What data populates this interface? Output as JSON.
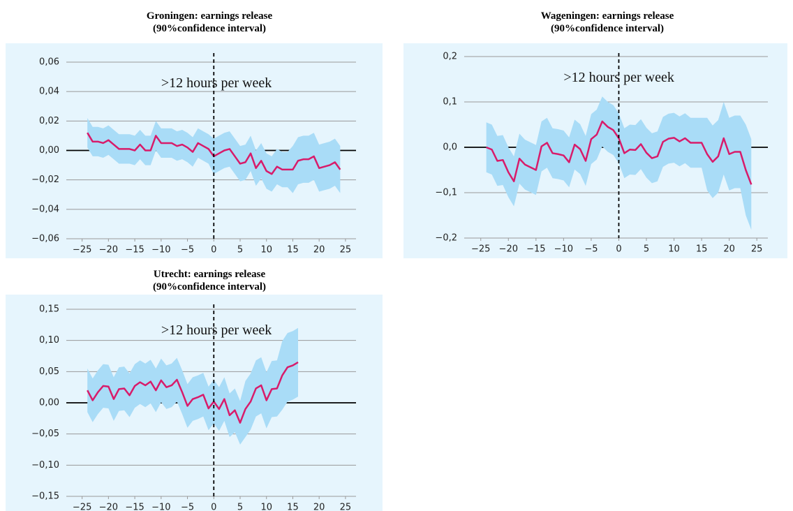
{
  "chart_data": [
    {
      "type": "line",
      "title": "Groningen: earnings release",
      "subtitle": "(90%confidence interval)",
      "annotation": ">12 hours per week",
      "color": "#d81b6a",
      "band_color": "#a9dcf7",
      "background": "#e6f5fd",
      "vline": 0,
      "xlim": [
        -28,
        27
      ],
      "ylim": [
        -0.06,
        0.06
      ],
      "xticks": [
        {
          "value": -25,
          "label": "−25"
        },
        {
          "value": -20,
          "label": "−20"
        },
        {
          "value": -15,
          "label": "−15"
        },
        {
          "value": -10,
          "label": "−10"
        },
        {
          "value": -5,
          "label": "−5"
        },
        0,
        5,
        10,
        15,
        20,
        25
      ],
      "yticks": [
        {
          "value": -0.06,
          "label": "−0,06"
        },
        {
          "value": -0.04,
          "label": "−0,04"
        },
        {
          "value": -0.02,
          "label": "−0,02"
        },
        {
          "value": 0,
          "label": "0,00"
        },
        {
          "value": 0.02,
          "label": "0,02"
        },
        {
          "value": 0.04,
          "label": "0,04"
        },
        {
          "value": 0.06,
          "label": "0,06"
        }
      ],
      "x": [
        -24,
        -23,
        -22,
        -21,
        -20,
        -19,
        -18,
        -17,
        -16,
        -15,
        -14,
        -13,
        -12,
        -11,
        -10,
        -9,
        -8,
        -7,
        -6,
        -5,
        -4,
        -3,
        -2,
        -1,
        0,
        1,
        2,
        3,
        4,
        5,
        6,
        7,
        8,
        9,
        10,
        11,
        12,
        13,
        14,
        15,
        16,
        17,
        18,
        19,
        20,
        21,
        22,
        23,
        24
      ],
      "values": [
        0.012,
        0.006,
        0.006,
        0.005,
        0.007,
        0.004,
        0.001,
        0.001,
        0.001,
        0.0,
        0.004,
        0.0,
        0.0,
        0.01,
        0.005,
        0.005,
        0.005,
        0.003,
        0.004,
        0.002,
        -0.001,
        0.005,
        0.003,
        0.001,
        -0.004,
        -0.002,
        0.0,
        0.001,
        -0.004,
        -0.009,
        -0.008,
        -0.002,
        -0.012,
        -0.007,
        -0.014,
        -0.016,
        -0.011,
        -0.013,
        -0.013,
        -0.013,
        -0.007,
        -0.006,
        -0.006,
        -0.004,
        -0.012,
        -0.011,
        -0.01,
        -0.008,
        -0.013
      ],
      "lower": [
        0.002,
        -0.004,
        -0.004,
        -0.005,
        -0.003,
        -0.006,
        -0.009,
        -0.009,
        -0.009,
        -0.01,
        -0.006,
        -0.01,
        -0.01,
        0.0,
        -0.005,
        -0.005,
        -0.005,
        -0.007,
        -0.006,
        -0.008,
        -0.011,
        -0.005,
        -0.007,
        -0.009,
        -0.016,
        -0.014,
        -0.012,
        -0.011,
        -0.016,
        -0.021,
        -0.02,
        -0.014,
        -0.024,
        -0.019,
        -0.026,
        -0.028,
        -0.023,
        -0.025,
        -0.025,
        -0.029,
        -0.023,
        -0.022,
        -0.022,
        -0.02,
        -0.028,
        -0.027,
        -0.026,
        -0.024,
        -0.029
      ],
      "upper": [
        0.022,
        0.016,
        0.016,
        0.015,
        0.017,
        0.014,
        0.011,
        0.011,
        0.011,
        0.01,
        0.014,
        0.01,
        0.01,
        0.02,
        0.015,
        0.015,
        0.015,
        0.013,
        0.014,
        0.012,
        0.009,
        0.015,
        0.013,
        0.011,
        0.008,
        0.01,
        0.012,
        0.013,
        0.008,
        0.003,
        0.004,
        0.01,
        0.0,
        0.005,
        -0.002,
        -0.004,
        0.001,
        -0.001,
        -0.001,
        0.003,
        0.009,
        0.01,
        0.01,
        0.012,
        0.004,
        0.005,
        0.006,
        0.008,
        0.003
      ]
    },
    {
      "type": "line",
      "title": "Wageningen: earnings release",
      "subtitle": "(90%confidence interval)",
      "annotation": ">12 hours per week",
      "color": "#d81b6a",
      "band_color": "#a9dcf7",
      "background": "#e6f5fd",
      "vline": 0,
      "xlim": [
        -28,
        27
      ],
      "ylim": [
        -0.2,
        0.2
      ],
      "xticks": [
        {
          "value": -25,
          "label": "−25"
        },
        {
          "value": -20,
          "label": "−20"
        },
        {
          "value": -15,
          "label": "−15"
        },
        {
          "value": -10,
          "label": "−10"
        },
        {
          "value": -5,
          "label": "−5"
        },
        0,
        5,
        10,
        15,
        20,
        25
      ],
      "yticks": [
        {
          "value": -0.2,
          "label": "−0,2"
        },
        {
          "value": -0.1,
          "label": "−0,1"
        },
        {
          "value": 0,
          "label": "0,0"
        },
        {
          "value": 0.1,
          "label": "0,1"
        },
        {
          "value": 0.2,
          "label": "0,2"
        }
      ],
      "x": [
        -24,
        -23,
        -22,
        -21,
        -20,
        -19,
        -18,
        -17,
        -16,
        -15,
        -14,
        -13,
        -12,
        -11,
        -10,
        -9,
        -8,
        -7,
        -6,
        -5,
        -4,
        -3,
        -2,
        -1,
        0,
        1,
        2,
        3,
        4,
        5,
        6,
        7,
        8,
        9,
        10,
        11,
        12,
        13,
        14,
        15,
        16,
        17,
        18,
        19,
        20,
        21,
        22,
        23,
        24
      ],
      "values": [
        0.0,
        -0.005,
        -0.03,
        -0.028,
        -0.055,
        -0.075,
        -0.025,
        -0.038,
        -0.044,
        -0.05,
        0.002,
        0.01,
        -0.013,
        -0.015,
        -0.018,
        -0.033,
        0.006,
        -0.004,
        -0.03,
        0.018,
        0.028,
        0.057,
        0.045,
        0.038,
        0.02,
        -0.013,
        -0.005,
        -0.006,
        0.007,
        -0.012,
        -0.024,
        -0.02,
        0.012,
        0.019,
        0.021,
        0.013,
        0.02,
        0.01,
        0.01,
        0.01,
        -0.015,
        -0.032,
        -0.02,
        0.02,
        -0.015,
        -0.01,
        -0.01,
        -0.05,
        -0.082
      ],
      "lower": [
        -0.055,
        -0.06,
        -0.085,
        -0.083,
        -0.11,
        -0.13,
        -0.08,
        -0.093,
        -0.099,
        -0.105,
        -0.053,
        -0.045,
        -0.068,
        -0.07,
        -0.073,
        -0.088,
        -0.049,
        -0.059,
        -0.085,
        -0.037,
        -0.027,
        0.002,
        -0.01,
        -0.017,
        -0.035,
        -0.068,
        -0.06,
        -0.061,
        -0.048,
        -0.067,
        -0.079,
        -0.075,
        -0.043,
        -0.036,
        -0.034,
        -0.042,
        -0.035,
        -0.045,
        -0.045,
        -0.045,
        -0.095,
        -0.112,
        -0.1,
        -0.06,
        -0.095,
        -0.09,
        -0.09,
        -0.15,
        -0.182
      ],
      "upper": [
        0.055,
        0.05,
        0.025,
        0.027,
        0.0,
        -0.02,
        0.03,
        0.017,
        0.011,
        0.005,
        0.057,
        0.065,
        0.042,
        0.04,
        0.037,
        0.022,
        0.061,
        0.051,
        0.025,
        0.073,
        0.083,
        0.112,
        0.1,
        0.093,
        0.075,
        0.042,
        0.05,
        0.049,
        0.062,
        0.043,
        0.031,
        0.035,
        0.067,
        0.074,
        0.076,
        0.068,
        0.075,
        0.065,
        0.065,
        0.065,
        0.065,
        0.048,
        0.06,
        0.1,
        0.065,
        0.07,
        0.07,
        0.05,
        0.018
      ]
    },
    {
      "type": "line",
      "title": "Utrecht: earnings release",
      "subtitle": "(90%confidence interval)",
      "annotation": ">12 hours per week",
      "color": "#d81b6a",
      "band_color": "#a9dcf7",
      "background": "#e6f5fd",
      "vline": 0,
      "xlim": [
        -28,
        27
      ],
      "ylim": [
        -0.15,
        0.15
      ],
      "xticks": [
        {
          "value": -25,
          "label": "−25"
        },
        {
          "value": -20,
          "label": "−20"
        },
        {
          "value": -15,
          "label": "−15"
        },
        {
          "value": -10,
          "label": "−10"
        },
        {
          "value": -5,
          "label": "−5"
        },
        0,
        5,
        10,
        15,
        20,
        25
      ],
      "yticks": [
        {
          "value": -0.15,
          "label": "−0,15"
        },
        {
          "value": -0.1,
          "label": "−0,10"
        },
        {
          "value": -0.05,
          "label": "−0,05"
        },
        {
          "value": 0,
          "label": "0,00"
        },
        {
          "value": 0.05,
          "label": "0,05"
        },
        {
          "value": 0.1,
          "label": "0,10"
        },
        {
          "value": 0.15,
          "label": "0,15"
        }
      ],
      "x": [
        -24,
        -23,
        -22,
        -21,
        -20,
        -19,
        -18,
        -17,
        -16,
        -15,
        -14,
        -13,
        -12,
        -11,
        -10,
        -9,
        -8,
        -7,
        -6,
        -5,
        -4,
        -3,
        -2,
        -1,
        0,
        1,
        2,
        3,
        4,
        5,
        6,
        7,
        8,
        9,
        10,
        11,
        12,
        13,
        14,
        15,
        16
      ],
      "values": [
        0.02,
        0.004,
        0.017,
        0.027,
        0.026,
        0.006,
        0.022,
        0.023,
        0.012,
        0.027,
        0.033,
        0.028,
        0.034,
        0.02,
        0.036,
        0.025,
        0.028,
        0.037,
        0.017,
        -0.005,
        0.006,
        0.009,
        0.013,
        -0.009,
        0.002,
        -0.01,
        0.006,
        -0.02,
        -0.012,
        -0.032,
        -0.01,
        0.002,
        0.023,
        0.028,
        0.004,
        0.022,
        0.023,
        0.044,
        0.057,
        0.06,
        0.065
      ],
      "lower": [
        -0.015,
        -0.031,
        -0.018,
        -0.008,
        -0.009,
        -0.029,
        -0.013,
        -0.012,
        -0.023,
        -0.008,
        -0.002,
        -0.007,
        -0.001,
        -0.015,
        0.001,
        -0.01,
        -0.007,
        0.002,
        -0.018,
        -0.04,
        -0.029,
        -0.026,
        -0.022,
        -0.044,
        -0.033,
        -0.045,
        -0.029,
        -0.055,
        -0.047,
        -0.067,
        -0.055,
        -0.043,
        -0.022,
        -0.017,
        -0.041,
        -0.023,
        -0.022,
        -0.011,
        0.002,
        0.005,
        0.01
      ],
      "upper": [
        0.055,
        0.039,
        0.052,
        0.062,
        0.061,
        0.041,
        0.057,
        0.058,
        0.047,
        0.062,
        0.068,
        0.063,
        0.069,
        0.055,
        0.071,
        0.06,
        0.063,
        0.072,
        0.052,
        0.03,
        0.041,
        0.044,
        0.048,
        0.026,
        0.037,
        0.025,
        0.041,
        0.015,
        0.023,
        0.003,
        0.035,
        0.047,
        0.068,
        0.073,
        0.049,
        0.067,
        0.068,
        0.099,
        0.112,
        0.115,
        0.12
      ]
    }
  ]
}
